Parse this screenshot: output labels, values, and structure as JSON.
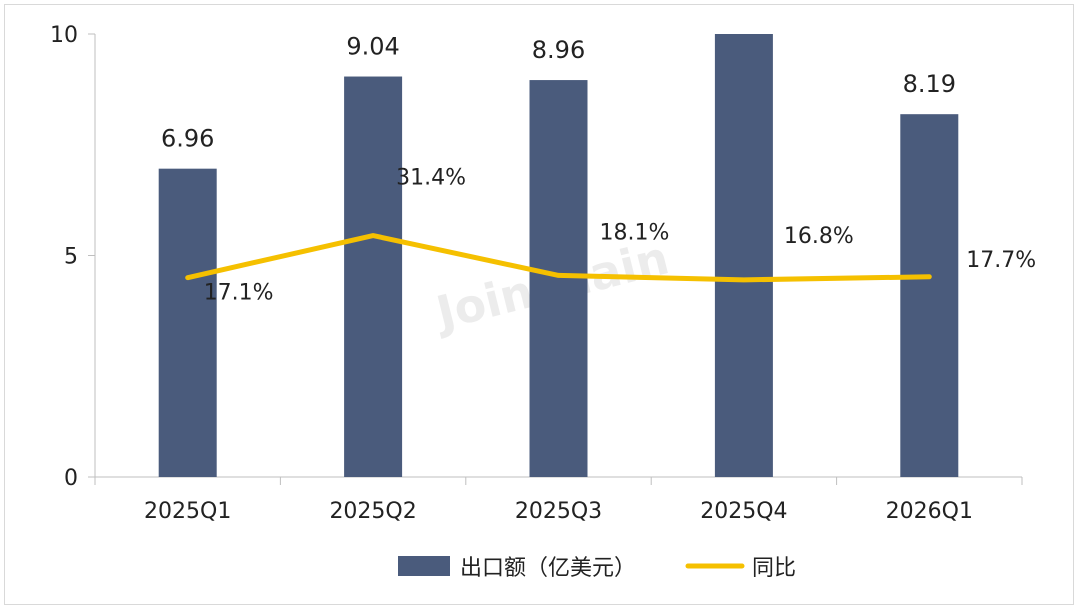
{
  "chart_data": {
    "type": "bar",
    "categories": [
      "2025Q1",
      "2025Q2",
      "2025Q3",
      "2025Q4",
      "2026Q1"
    ],
    "series": [
      {
        "name": "出口额（亿美元）",
        "type": "bar",
        "values": [
          6.96,
          9.04,
          8.96,
          10.0,
          8.19
        ],
        "labels": [
          "6.96",
          "9.04",
          "8.96",
          "",
          "8.19"
        ],
        "color": "#4a5b7c"
      },
      {
        "name": "同比",
        "type": "line",
        "values": [
          4.5,
          5.45,
          4.55,
          4.45,
          4.52
        ],
        "labels": [
          "17.1%",
          "31.4%",
          "18.1%",
          "16.8%",
          "17.7%"
        ],
        "color": "#f5c000"
      }
    ],
    "yticks": [
      "0",
      "5",
      "10"
    ],
    "ylim": [
      0,
      10
    ],
    "watermark": "Joinchain",
    "legend_position": "bottom"
  }
}
